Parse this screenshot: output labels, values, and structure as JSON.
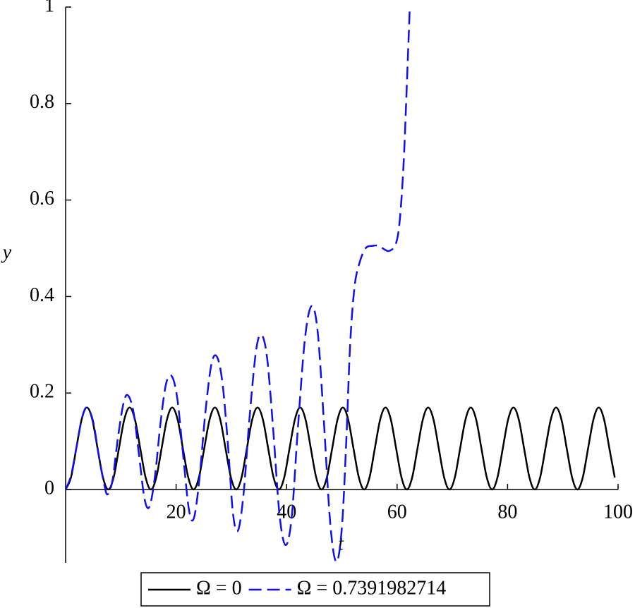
{
  "chart_data": {
    "type": "line",
    "x_label": "t",
    "y_label": "y",
    "xlim": [
      0,
      100
    ],
    "ylim": [
      -0.152,
      1
    ],
    "xticks": [
      20,
      40,
      60,
      80,
      100
    ],
    "yticks": [
      0,
      0.2,
      0.4,
      0.6,
      0.8,
      1
    ],
    "legend": "bottom",
    "series": [
      {
        "name": "Ω = 0",
        "color": "#000000",
        "dash": false,
        "x": [
          0,
          0.97,
          1.93,
          2.9,
          3.86,
          4.83,
          5.79,
          6.76,
          7.72,
          8.69,
          9.65,
          10.62,
          11.58,
          12.55,
          13.51,
          14.48,
          15.44,
          16.41,
          17.37,
          18.34,
          19.3,
          20.27,
          21.23,
          22.2,
          23.16,
          24.13,
          25.09,
          26.06,
          27.02,
          27.99,
          28.95,
          29.92,
          30.88,
          31.85,
          32.81,
          33.78,
          34.74,
          35.71,
          36.67,
          37.64,
          38.6,
          39.57,
          40.53,
          41.5,
          42.46,
          43.43,
          44.39,
          45.36,
          46.32,
          47.29,
          48.25,
          49.22,
          50.18,
          51.15,
          52.11,
          53.08,
          54.04,
          55.01,
          55.97,
          56.94,
          57.9,
          58.87,
          59.83,
          60.8,
          61.76,
          62.73,
          63.69,
          64.66,
          65.62,
          66.59,
          67.55,
          68.52,
          69.48,
          70.45,
          71.41,
          72.38,
          73.34,
          74.31,
          75.27,
          76.24,
          77.2,
          78.17,
          79.13,
          80.1,
          81.06,
          82.03,
          82.99,
          83.96,
          84.92,
          85.89,
          86.85,
          87.82,
          88.78,
          89.75,
          90.71,
          91.68,
          92.64,
          93.61,
          94.57,
          95.54,
          96.5,
          97.47,
          98.43,
          99.4
        ],
        "values": [
          0,
          0.0249,
          0.085,
          0.1451,
          0.17,
          0.1451,
          0.085,
          0.0249,
          0,
          0.0249,
          0.085,
          0.1451,
          0.17,
          0.1451,
          0.085,
          0.0249,
          0,
          0.0249,
          0.085,
          0.1451,
          0.17,
          0.1451,
          0.085,
          0.0249,
          0,
          0.0249,
          0.085,
          0.1451,
          0.17,
          0.1451,
          0.085,
          0.0249,
          0,
          0.0249,
          0.085,
          0.1451,
          0.17,
          0.1451,
          0.085,
          0.0249,
          0,
          0.0249,
          0.085,
          0.1451,
          0.17,
          0.1451,
          0.085,
          0.0249,
          0,
          0.0249,
          0.085,
          0.1451,
          0.17,
          0.1451,
          0.085,
          0.0249,
          0,
          0.0249,
          0.085,
          0.1451,
          0.17,
          0.1451,
          0.085,
          0.0249,
          0,
          0.0249,
          0.085,
          0.1451,
          0.17,
          0.1451,
          0.085,
          0.0249,
          0,
          0.0249,
          0.085,
          0.1451,
          0.17,
          0.1451,
          0.085,
          0.0249,
          0,
          0.0249,
          0.085,
          0.1451,
          0.17,
          0.1451,
          0.085,
          0.0249,
          0,
          0.0249,
          0.085,
          0.1451,
          0.17,
          0.1451,
          0.085,
          0.0249,
          0,
          0.0249,
          0.085,
          0.1451,
          0.17,
          0.1451,
          0.085,
          0.0249
        ]
      },
      {
        "name": "Ω = 0.7391982714",
        "color": "#1010ee",
        "dash": true,
        "x": [
          0,
          1,
          2,
          3,
          3.9,
          5,
          6,
          7,
          7.6,
          8.5,
          9.5,
          10.5,
          11.3,
          12.3,
          13.3,
          14.3,
          15.2,
          16.2,
          17.2,
          18.2,
          19.2,
          20.2,
          21.2,
          22.3,
          23.2,
          24.2,
          25.3,
          26.4,
          27.4,
          28.4,
          29.4,
          30.3,
          31.2,
          32.2,
          33.3,
          34.5,
          35.5,
          36.5,
          37.6,
          38.7,
          39.8,
          40.9,
          42,
          43.3,
          44.5,
          45.6,
          46.7,
          47.9,
          49,
          50,
          50.8,
          51.5,
          52.3,
          53.2,
          54.3,
          55.5,
          56.7,
          57.8,
          58.7,
          59.8,
          60.5,
          61.2,
          61.8,
          62.3
        ],
        "values": [
          0,
          0.03,
          0.09,
          0.15,
          0.17,
          0.14,
          0.07,
          0.01,
          -0.01,
          0.02,
          0.11,
          0.18,
          0.195,
          0.16,
          0.07,
          -0.02,
          -0.035,
          0.03,
          0.14,
          0.22,
          0.235,
          0.19,
          0.08,
          -0.04,
          -0.06,
          0.02,
          0.16,
          0.26,
          0.275,
          0.22,
          0.09,
          -0.05,
          -0.085,
          -0.01,
          0.15,
          0.29,
          0.32,
          0.27,
          0.12,
          -0.05,
          -0.115,
          -0.06,
          0.12,
          0.31,
          0.38,
          0.33,
          0.15,
          -0.07,
          -0.15,
          -0.08,
          0.1,
          0.3,
          0.42,
          0.47,
          0.5,
          0.505,
          0.505,
          0.497,
          0.495,
          0.51,
          0.56,
          0.68,
          0.85,
          1.0
        ]
      }
    ]
  }
}
